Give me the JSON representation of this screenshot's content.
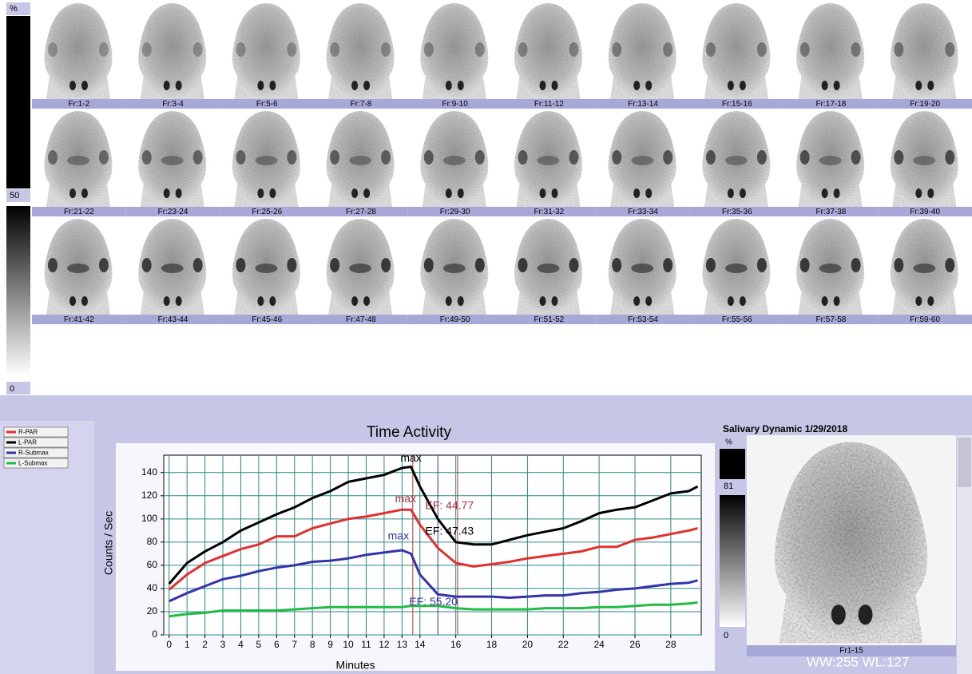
{
  "top_colorbar": {
    "unit": "%",
    "mid": "50",
    "min": "0"
  },
  "frames": [
    "Fr:1-2",
    "Fr:3-4",
    "Fr:5-6",
    "Fr:7-8",
    "Fr:9-10",
    "Fr:11-12",
    "Fr:13-14",
    "Fr:15-16",
    "Fr:17-18",
    "Fr:19-20",
    "Fr:21-22",
    "Fr:23-24",
    "Fr:25-26",
    "Fr:27-28",
    "Fr:29-30",
    "Fr:31-32",
    "Fr:33-34",
    "Fr:35-36",
    "Fr:37-38",
    "Fr:39-40",
    "Fr:41-42",
    "Fr:43-44",
    "Fr:45-46",
    "Fr:47-48",
    "Fr:49-50",
    "Fr:51-52",
    "Fr:53-54",
    "Fr:55-56",
    "Fr:57-58",
    "Fr:59-60"
  ],
  "chart_data": {
    "type": "line",
    "title": "Time Activity",
    "xlabel": "Minutes",
    "ylabel": "Counts / Sec",
    "x": [
      0,
      1,
      2,
      3,
      4,
      5,
      6,
      7,
      8,
      9,
      10,
      11,
      12,
      13,
      13.5,
      14,
      15,
      16,
      17,
      18,
      19,
      20,
      21,
      22,
      23,
      24,
      25,
      26,
      27,
      28,
      29,
      29.5
    ],
    "series": [
      {
        "name": "R-PAR",
        "color": "#e03030",
        "values": [
          39,
          52,
          62,
          68,
          74,
          78,
          85,
          85,
          92,
          96,
          100,
          102,
          105,
          108,
          108,
          95,
          75,
          62,
          59,
          61,
          63,
          66,
          68,
          70,
          72,
          76,
          76,
          82,
          84,
          87,
          90,
          92
        ]
      },
      {
        "name": "L-PAR",
        "color": "#000000",
        "values": [
          44,
          62,
          72,
          80,
          90,
          97,
          104,
          110,
          118,
          124,
          132,
          135,
          138,
          144,
          145,
          128,
          100,
          80,
          78,
          78,
          82,
          86,
          89,
          92,
          98,
          105,
          108,
          110,
          116,
          122,
          124,
          128
        ]
      },
      {
        "name": "R-Submax",
        "color": "#3333aa",
        "values": [
          29,
          36,
          42,
          48,
          51,
          55,
          58,
          60,
          63,
          64,
          66,
          69,
          71,
          73,
          70,
          52,
          35,
          33,
          33,
          33,
          32,
          33,
          34,
          34,
          36,
          37,
          39,
          40,
          42,
          44,
          45,
          47
        ]
      },
      {
        "name": "L-Submax",
        "color": "#22bb44",
        "values": [
          16,
          18,
          19,
          21,
          21,
          21,
          21,
          22,
          23,
          24,
          24,
          24,
          24,
          24,
          25,
          25,
          25,
          23,
          22,
          22,
          22,
          22,
          23,
          23,
          23,
          24,
          24,
          25,
          26,
          26,
          27,
          28
        ]
      }
    ],
    "xlim": [
      -0.3,
      29.7
    ],
    "ylim": [
      0,
      155
    ],
    "xticks": [
      0,
      1,
      2,
      3,
      4,
      5,
      6,
      7,
      8,
      9,
      10,
      11,
      12,
      13,
      14,
      16,
      18,
      20,
      22,
      24,
      26,
      28
    ],
    "yticks": [
      0,
      20,
      40,
      60,
      80,
      100,
      120,
      140
    ],
    "grid": true,
    "annotations": [
      {
        "text": "max",
        "x": 13.5,
        "y": 152,
        "color": "#000000",
        "anchor": "middle"
      },
      {
        "text": "max",
        "x": 13.2,
        "y": 117,
        "color": "#b03040",
        "anchor": "middle"
      },
      {
        "text": "max",
        "x": 12.8,
        "y": 85,
        "color": "#3333aa",
        "anchor": "middle"
      },
      {
        "text": "EF: 44.77",
        "x": 14.3,
        "y": 111,
        "color": "#b03040",
        "anchor": "start"
      },
      {
        "text": "EF: 47.43",
        "x": 14.3,
        "y": 89,
        "color": "#000000",
        "anchor": "start"
      },
      {
        "text": "EF: 55.20",
        "x": 13.4,
        "y": 28,
        "color": "#3333aa",
        "anchor": "start"
      }
    ],
    "vlines": [
      {
        "x": 13.6,
        "color": "#c03030"
      },
      {
        "x": 15.0,
        "color": "#3333aa"
      },
      {
        "x": 16.1,
        "color": "#c03030"
      }
    ]
  },
  "right_panel": {
    "title": "Salivary Dynamic 1/29/2018",
    "colorbar": {
      "unit": "%",
      "max": "81",
      "min": "0"
    },
    "frame_label": "Fr1-15",
    "window_text": "WW:255  WL:127"
  }
}
